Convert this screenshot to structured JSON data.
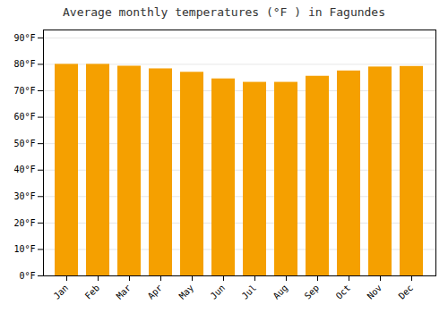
{
  "chart_data": {
    "type": "bar",
    "title": "Average monthly temperatures (°F ) in Fagundes",
    "categories": [
      "Jan",
      "Feb",
      "Mar",
      "Apr",
      "May",
      "Jun",
      "Jul",
      "Aug",
      "Sep",
      "Oct",
      "Nov",
      "Dec"
    ],
    "values": [
      80.0,
      80.0,
      79.3,
      78.3,
      77.0,
      74.5,
      73.2,
      73.2,
      75.5,
      77.5,
      79.0,
      79.2
    ],
    "color": "#F5A000",
    "ylim": [
      0,
      93
    ],
    "yticks": [
      {
        "value": 0,
        "label": "0°F"
      },
      {
        "value": 10,
        "label": "10°F"
      },
      {
        "value": 20,
        "label": "20°F"
      },
      {
        "value": 30,
        "label": "30°F"
      },
      {
        "value": 40,
        "label": "40°F"
      },
      {
        "value": 50,
        "label": "50°F"
      },
      {
        "value": 60,
        "label": "60°F"
      },
      {
        "value": 70,
        "label": "70°F"
      },
      {
        "value": 80,
        "label": "80°F"
      },
      {
        "value": 90,
        "label": "90°F"
      }
    ],
    "grid": true
  }
}
